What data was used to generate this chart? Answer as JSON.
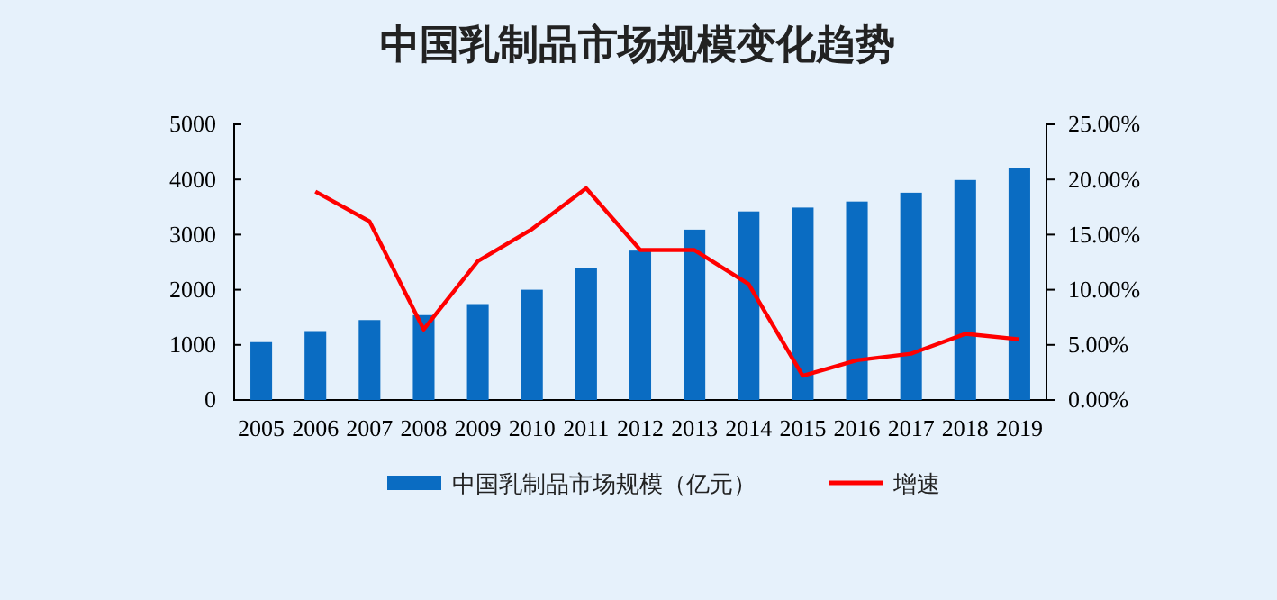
{
  "chart_data": {
    "type": "bar",
    "title": "中国乳制品市场规模变化趋势",
    "categories": [
      "2005",
      "2006",
      "2007",
      "2008",
      "2009",
      "2010",
      "2011",
      "2012",
      "2013",
      "2014",
      "2015",
      "2016",
      "2017",
      "2018",
      "2019"
    ],
    "series": [
      {
        "name": "中国乳制品市场规模（亿元）",
        "color": "#0a6cc2",
        "values": [
          1050,
          1250,
          1450,
          1540,
          1740,
          2000,
          2390,
          2710,
          3090,
          3420,
          3490,
          3600,
          3760,
          3990,
          4210
        ]
      },
      {
        "name": "增速",
        "type": "line",
        "axis": "y2",
        "color": "#ff0000",
        "values": [
          null,
          18.9,
          16.2,
          6.4,
          12.6,
          15.5,
          19.2,
          13.6,
          13.6,
          10.5,
          2.2,
          3.6,
          4.2,
          6.0,
          5.5
        ]
      }
    ],
    "ylim": [
      0,
      5000
    ],
    "yticks": [
      0,
      1000,
      2000,
      3000,
      4000,
      5000
    ],
    "y2lim": [
      0,
      25
    ],
    "y2ticks": [
      {
        "value": 0,
        "label": "0.00%"
      },
      {
        "value": 5,
        "label": "5.00%"
      },
      {
        "value": 10,
        "label": "10.00%"
      },
      {
        "value": 15,
        "label": "15.00%"
      },
      {
        "value": 20,
        "label": "20.00%"
      },
      {
        "value": 25,
        "label": "25.00%"
      }
    ],
    "legend": "bottom",
    "marker": "none",
    "line_style": "solid"
  }
}
